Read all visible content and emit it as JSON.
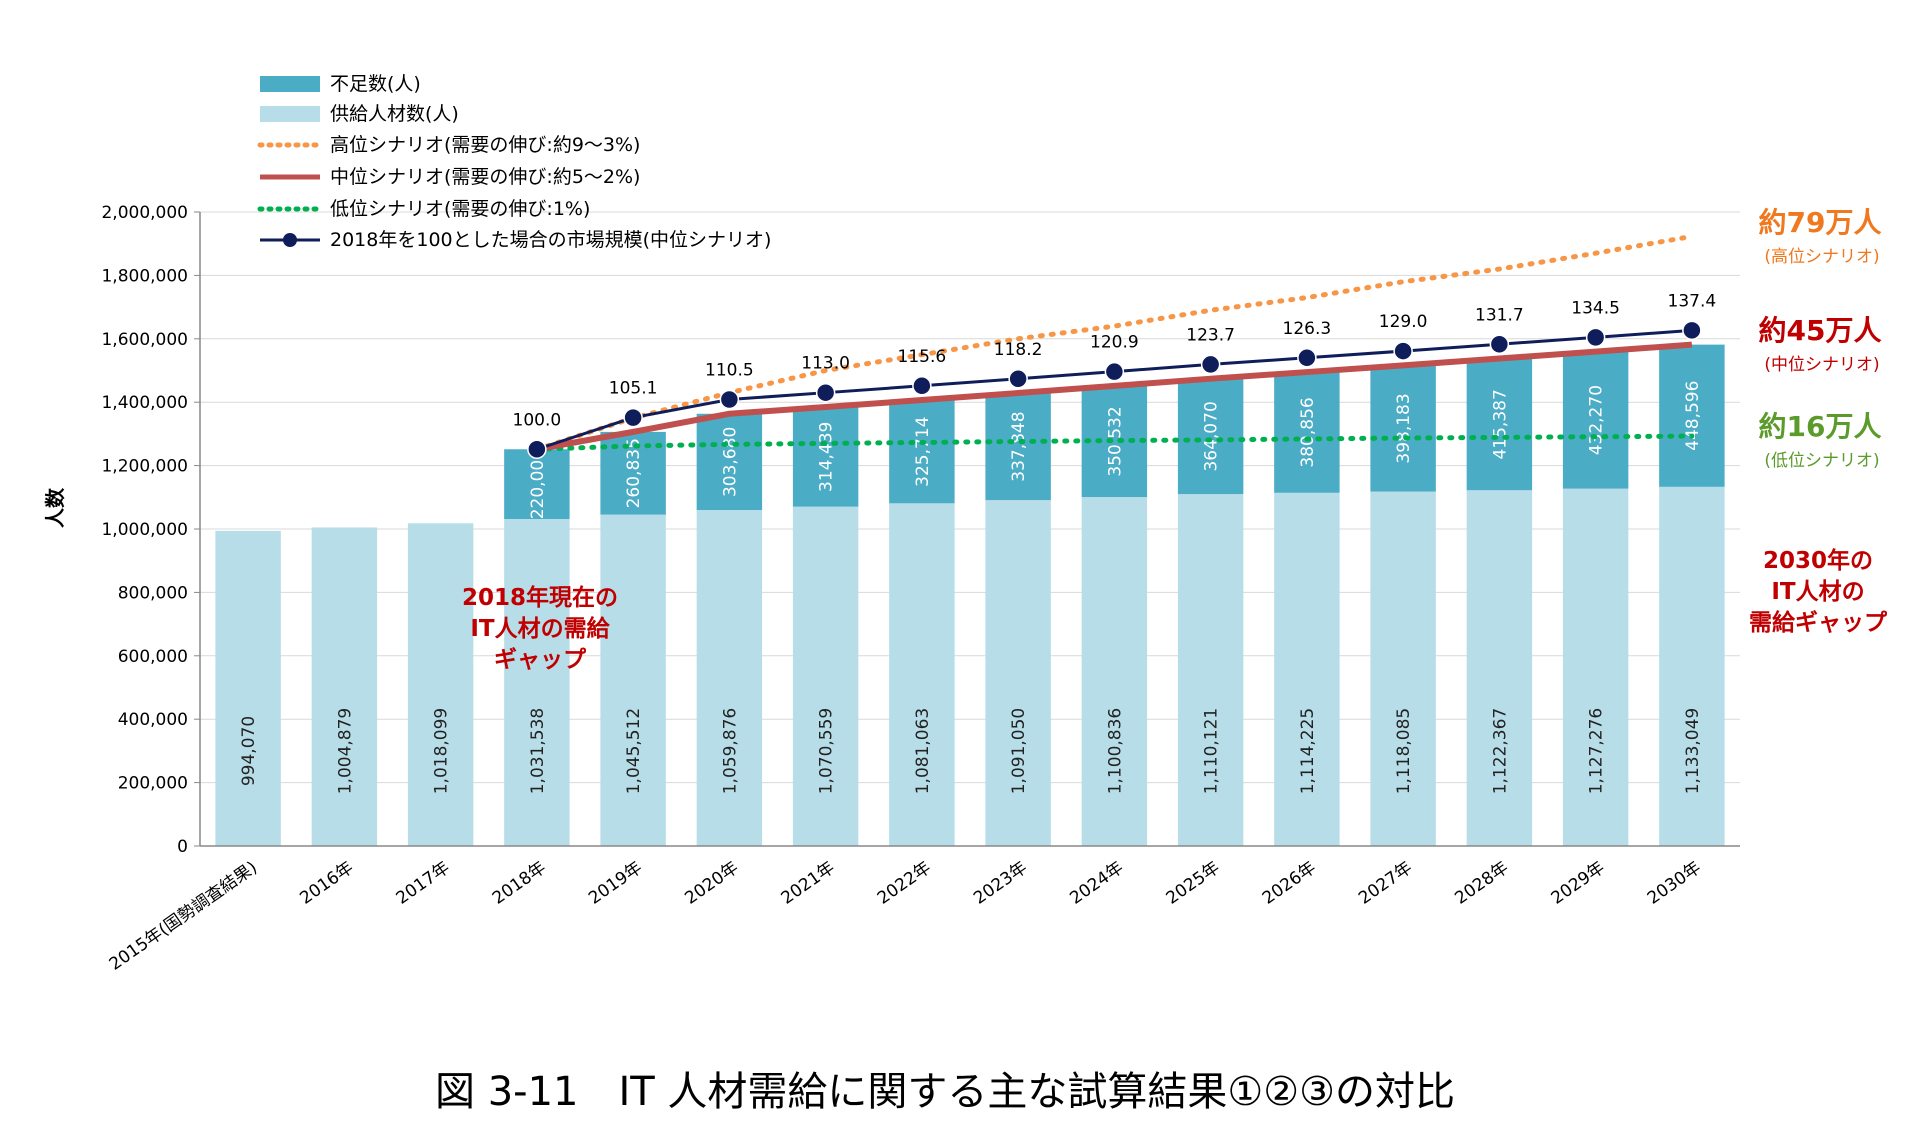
{
  "chart_data": {
    "type": "bar",
    "categories": [
      "2015年(国勢調査結果)",
      "2016年",
      "2017年",
      "2018年",
      "2019年",
      "2020年",
      "2021年",
      "2022年",
      "2023年",
      "2024年",
      "2025年",
      "2026年",
      "2027年",
      "2028年",
      "2029年",
      "2030年"
    ],
    "supply": [
      994070,
      1004879,
      1018099,
      1031538,
      1045512,
      1059876,
      1070559,
      1081063,
      1091050,
      1100836,
      1110121,
      1114225,
      1118085,
      1122367,
      1127276,
      1133049
    ],
    "supply_labels": [
      "994,070",
      "1,004,879",
      "1,018,099",
      "1,031,538",
      "1,045,512",
      "1,059,876",
      "1,070,559",
      "1,081,063",
      "1,091,050",
      "1,100,836",
      "1,110,121",
      "1,114,225",
      "1,118,085",
      "1,122,367",
      "1,127,276",
      "1,133,049"
    ],
    "shortage": [
      null,
      null,
      null,
      220000,
      260835,
      303680,
      314439,
      325714,
      337848,
      350532,
      364070,
      380856,
      398183,
      415387,
      432270,
      448596
    ],
    "shortage_labels": [
      "",
      "",
      "",
      "220,000",
      "260,835",
      "303,680",
      "314,439",
      "325,714",
      "337,848",
      "350,532",
      "364,070",
      "380,856",
      "398,183",
      "415,387",
      "432,270",
      "448,596"
    ],
    "high_scenario": [
      null,
      null,
      null,
      1251538,
      1350000,
      1430000,
      1500000,
      1550000,
      1600000,
      1640000,
      1690000,
      1730000,
      1780000,
      1820000,
      1870000,
      1923049
    ],
    "mid_scenario": [
      null,
      null,
      null,
      1251538,
      1306347,
      1363556,
      1384998,
      1406777,
      1428898,
      1451368,
      1474191,
      1495081,
      1516268,
      1537754,
      1559546,
      1581645
    ],
    "low_scenario": [
      null,
      null,
      null,
      1251538,
      1262000,
      1267000,
      1270000,
      1273000,
      1276000,
      1279000,
      1281000,
      1284000,
      1287000,
      1289000,
      1291000,
      1293049
    ],
    "market_index": [
      null,
      null,
      null,
      100.0,
      105.1,
      110.5,
      113.0,
      115.6,
      118.2,
      120.9,
      123.7,
      126.3,
      129.0,
      131.7,
      134.5,
      137.4
    ],
    "market_index_labels": [
      "",
      "",
      "",
      "100.0",
      "105.1",
      "110.5",
      "113.0",
      "115.6",
      "118.2",
      "120.9",
      "123.7",
      "126.3",
      "129.0",
      "131.7",
      "134.5",
      "137.4"
    ],
    "ylim": [
      0,
      2000000
    ],
    "yticks": [
      "0",
      "200,000",
      "400,000",
      "600,000",
      "800,000",
      "1,000,000",
      "1,200,000",
      "1,400,000",
      "1,600,000",
      "1,800,000",
      "2,000,000"
    ],
    "ylabel": "人数",
    "legend": {
      "shortage": "不足数(人)",
      "supply": "供給人材数(人)",
      "high": "高位シナリオ(需要の伸び:約9～3%)",
      "mid": "中位シナリオ(需要の伸び:約5～2%)",
      "low": "低位シナリオ(需要の伸び:1%)",
      "index": "2018年を100とした場合の市場規模(中位シナリオ)"
    },
    "annotations": {
      "high_big": "約79万人",
      "high_small": "(高位シナリオ)",
      "mid_big": "約45万人",
      "mid_small": "(中位シナリオ)",
      "low_big": "約16万人",
      "low_small": "(低位シナリオ)",
      "gap2018": [
        "2018年現在の",
        "IT人材の需給",
        "ギャップ"
      ],
      "gap2030": [
        "2030年の",
        "IT人材の",
        "需給ギャップ"
      ]
    },
    "colors": {
      "supply": "#b7dde8",
      "shortage": "#4bacc6",
      "high": "#f79646",
      "mid": "#c0504d",
      "low": "#00b050",
      "index": "#0f1e5a",
      "ann_high": "#f0781e",
      "ann_mid": "#c00000",
      "ann_low": "#5b9b2b"
    }
  },
  "caption": "図 3-11　IT 人材需給に関する主な試算結果①②③の対比"
}
